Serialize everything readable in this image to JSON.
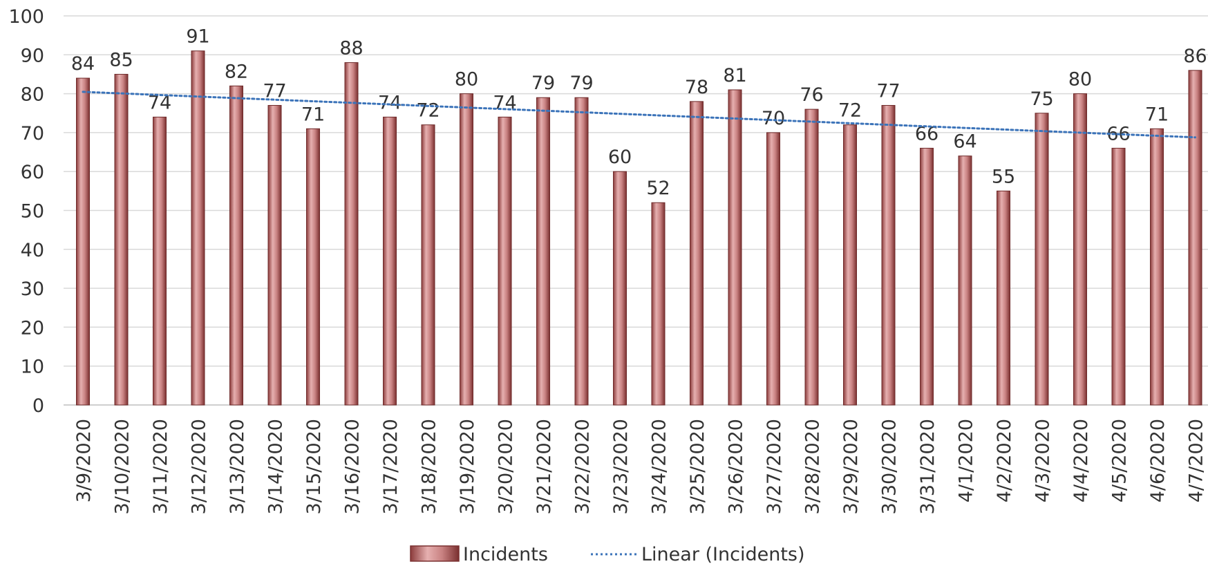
{
  "chart_data": {
    "type": "bar",
    "title": "",
    "xlabel": "",
    "ylabel": "",
    "ylim": [
      0,
      100
    ],
    "yticks": [
      0,
      10,
      20,
      30,
      40,
      50,
      60,
      70,
      80,
      90,
      100
    ],
    "grid": true,
    "legend_position": "bottom",
    "categories": [
      "3/9/2020",
      "3/10/2020",
      "3/11/2020",
      "3/12/2020",
      "3/13/2020",
      "3/14/2020",
      "3/15/2020",
      "3/16/2020",
      "3/17/2020",
      "3/18/2020",
      "3/19/2020",
      "3/20/2020",
      "3/21/2020",
      "3/22/2020",
      "3/23/2020",
      "3/24/2020",
      "3/25/2020",
      "3/26/2020",
      "3/27/2020",
      "3/28/2020",
      "3/29/2020",
      "3/30/2020",
      "3/31/2020",
      "4/1/2020",
      "4/2/2020",
      "4/3/2020",
      "4/4/2020",
      "4/5/2020",
      "4/6/2020",
      "4/7/2020"
    ],
    "series": [
      {
        "name": "Incidents",
        "color": "#b56868",
        "values": [
          84,
          85,
          74,
          91,
          82,
          77,
          71,
          88,
          74,
          72,
          80,
          74,
          79,
          79,
          60,
          52,
          78,
          81,
          70,
          76,
          72,
          77,
          66,
          64,
          55,
          75,
          80,
          66,
          71,
          86
        ]
      }
    ],
    "trendline": {
      "name": "Linear (Incidents)",
      "type": "linear",
      "color": "#3b73b9"
    }
  }
}
